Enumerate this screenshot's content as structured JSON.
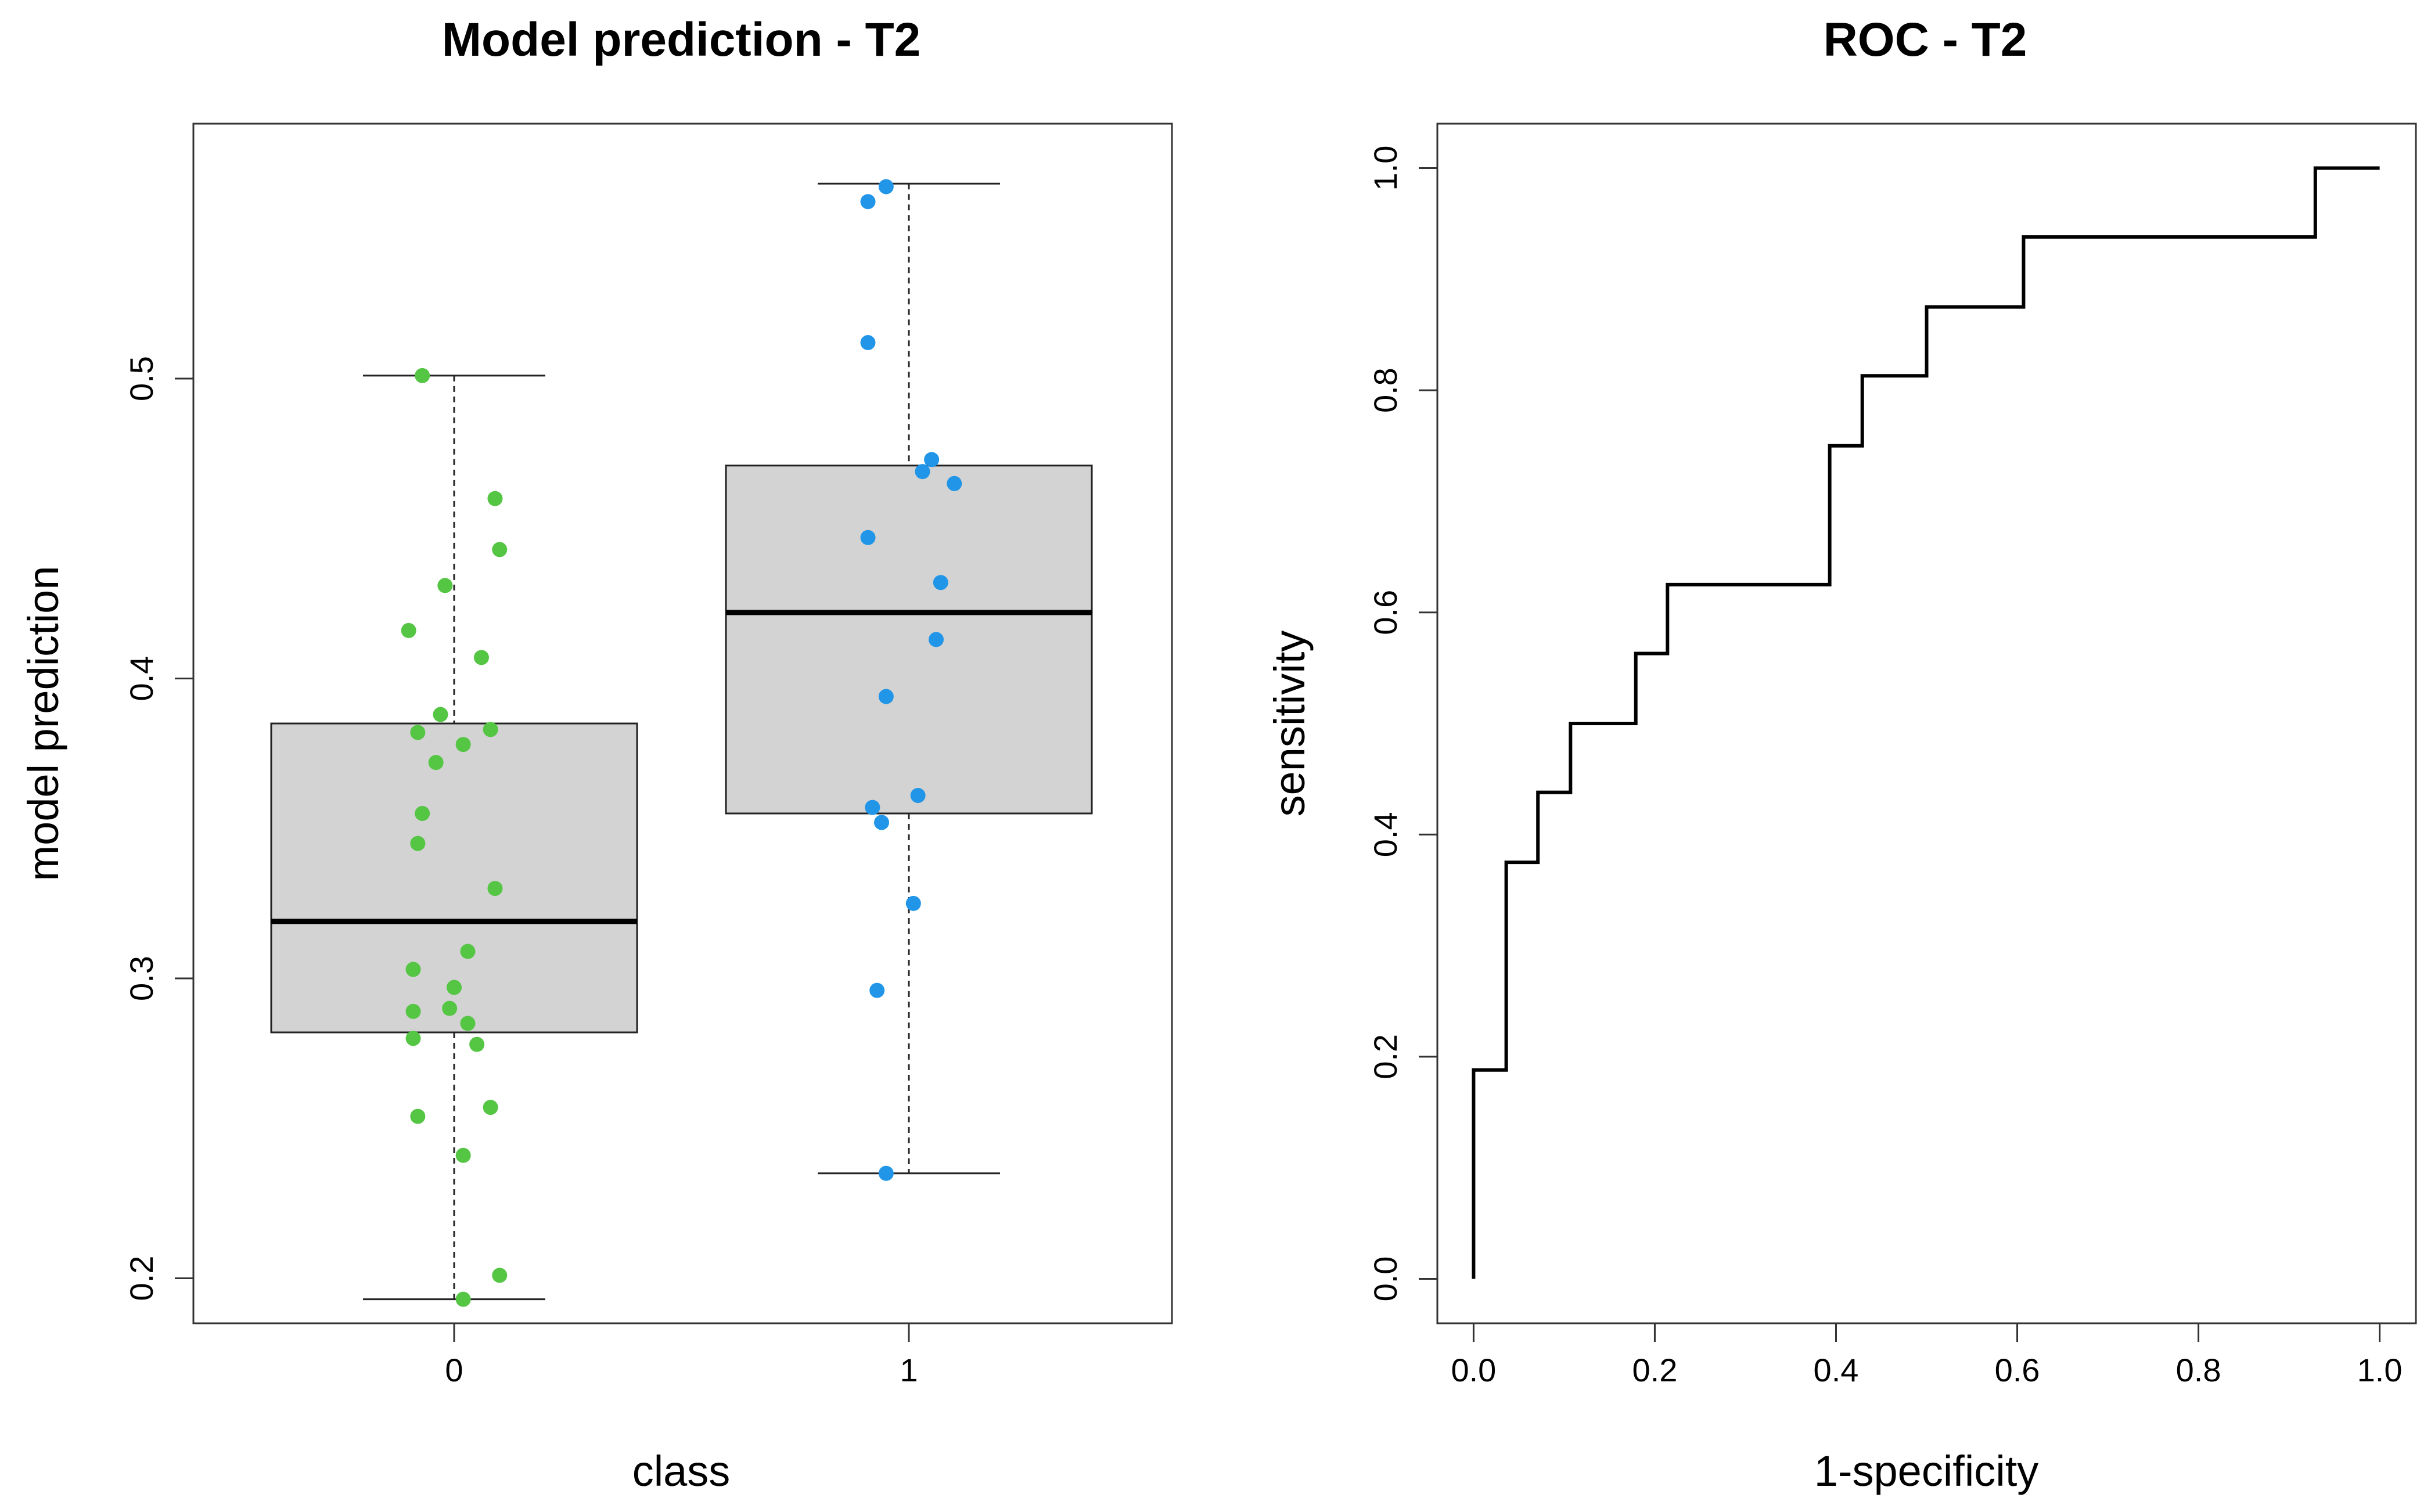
{
  "chart_data": [
    {
      "type": "box",
      "title": "Model prediction - T2",
      "xlabel": "class",
      "ylabel": "model prediction",
      "ylim": [
        0.185,
        0.585
      ],
      "yticks": [
        0.2,
        0.3,
        0.4,
        0.5
      ],
      "ytick_labels": [
        "0.2",
        "0.3",
        "0.4",
        "0.5"
      ],
      "categories": [
        "0",
        "1"
      ],
      "boxes": [
        {
          "name": "0",
          "whisker_low": 0.193,
          "q1": 0.282,
          "median": 0.319,
          "q3": 0.385,
          "whisker_high": 0.501,
          "color": "#d3d3d3"
        },
        {
          "name": "1",
          "whisker_low": 0.235,
          "q1": 0.355,
          "median": 0.422,
          "q3": 0.471,
          "whisker_high": 0.565,
          "color": "#d3d3d3"
        }
      ],
      "points": [
        {
          "name": "0",
          "color": "#55c544",
          "values": [
            0.501,
            0.46,
            0.443,
            0.431,
            0.416,
            0.407,
            0.388,
            0.383,
            0.382,
            0.378,
            0.372,
            0.355,
            0.345,
            0.33,
            0.309,
            0.303,
            0.297,
            0.29,
            0.289,
            0.285,
            0.28,
            0.278,
            0.257,
            0.254,
            0.241,
            0.201,
            0.193
          ],
          "jitter": [
            -0.07,
            0.09,
            0.1,
            -0.02,
            -0.1,
            0.06,
            -0.03,
            0.08,
            -0.08,
            0.02,
            -0.04,
            -0.07,
            -0.08,
            0.09,
            0.03,
            -0.09,
            0,
            -0.01,
            -0.09,
            0.03,
            -0.09,
            0.05,
            0.08,
            -0.08,
            0.02,
            0.1,
            0.02
          ]
        },
        {
          "name": "1",
          "color": "#2196e8",
          "values": [
            0.564,
            0.559,
            0.512,
            0.473,
            0.469,
            0.465,
            0.447,
            0.432,
            0.413,
            0.394,
            0.361,
            0.357,
            0.352,
            0.325,
            0.296,
            0.235
          ],
          "jitter": [
            -0.05,
            -0.09,
            -0.09,
            0.05,
            0.03,
            0.1,
            -0.09,
            0.07,
            0.06,
            -0.05,
            0.02,
            -0.08,
            -0.06,
            0.01,
            -0.07,
            -0.05
          ]
        }
      ],
      "grid": false
    },
    {
      "type": "line",
      "title": "ROC - T2",
      "xlabel": "1-specificity",
      "ylabel": "sensitivity",
      "xlim": [
        -0.04,
        1.04
      ],
      "ylim": [
        -0.04,
        1.04
      ],
      "xticks": [
        0.0,
        0.2,
        0.4,
        0.6,
        0.8,
        1.0
      ],
      "xtick_labels": [
        "0.0",
        "0.2",
        "0.4",
        "0.6",
        "0.8",
        "1.0"
      ],
      "yticks": [
        0.0,
        0.2,
        0.4,
        0.6,
        0.8,
        1.0
      ],
      "ytick_labels": [
        "0.0",
        "0.2",
        "0.4",
        "0.6",
        "0.8",
        "1.0"
      ],
      "series": [
        {
          "name": "ROC",
          "color": "#000000",
          "x": [
            0.0,
            0.0,
            0.036,
            0.036,
            0.071,
            0.071,
            0.107,
            0.107,
            0.179,
            0.179,
            0.214,
            0.214,
            0.393,
            0.393,
            0.429,
            0.429,
            0.5,
            0.5,
            0.607,
            0.607,
            0.929,
            0.929,
            1.0
          ],
          "y": [
            0.0,
            0.188,
            0.188,
            0.375,
            0.375,
            0.438,
            0.438,
            0.5,
            0.5,
            0.563,
            0.563,
            0.625,
            0.625,
            0.75,
            0.75,
            0.813,
            0.813,
            0.875,
            0.875,
            0.938,
            0.938,
            1.0,
            1.0
          ]
        }
      ],
      "grid": false
    }
  ]
}
